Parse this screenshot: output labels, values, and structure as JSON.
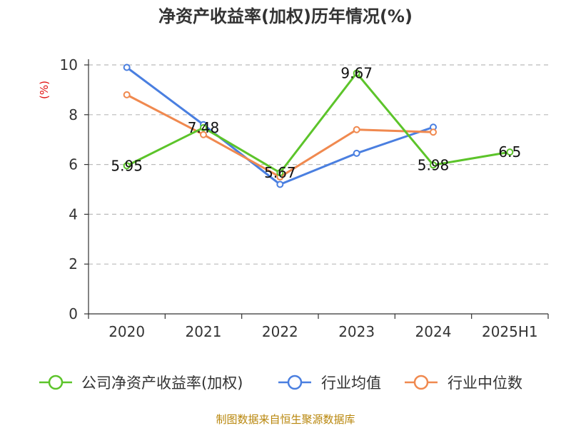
{
  "colors": {
    "company": "#5cc42a",
    "mean": "#4a7fe0",
    "median": "#f0894f",
    "grid": "#bbbbbb",
    "axis": "#333333",
    "ylabel": "#e01010",
    "source": "#b8860b"
  },
  "chart_data": {
    "type": "line",
    "title": "净资产收益率(加权)历年情况(%)",
    "xlabel": "",
    "ylabel": "(%)",
    "categories": [
      "2020",
      "2021",
      "2022",
      "2023",
      "2024",
      "2025H1"
    ],
    "ylim": [
      0,
      10
    ],
    "yticks": [
      0,
      2,
      4,
      6,
      8,
      10
    ],
    "grid": true,
    "legend_position": "bottom",
    "series": [
      {
        "name": "公司净资产收益率(加权)",
        "color_key": "company",
        "values": [
          5.95,
          7.48,
          5.67,
          9.67,
          5.98,
          6.5
        ],
        "labels": [
          "5.95",
          "7.48",
          "5.67",
          "9.67",
          "5.98",
          "6.5"
        ]
      },
      {
        "name": "行业均值",
        "color_key": "mean",
        "values": [
          9.9,
          7.6,
          5.2,
          6.45,
          7.5,
          null
        ]
      },
      {
        "name": "行业中位数",
        "color_key": "median",
        "values": [
          8.8,
          7.2,
          5.5,
          7.4,
          7.3,
          null
        ]
      }
    ],
    "source": "制图数据来自恒生聚源数据库"
  }
}
